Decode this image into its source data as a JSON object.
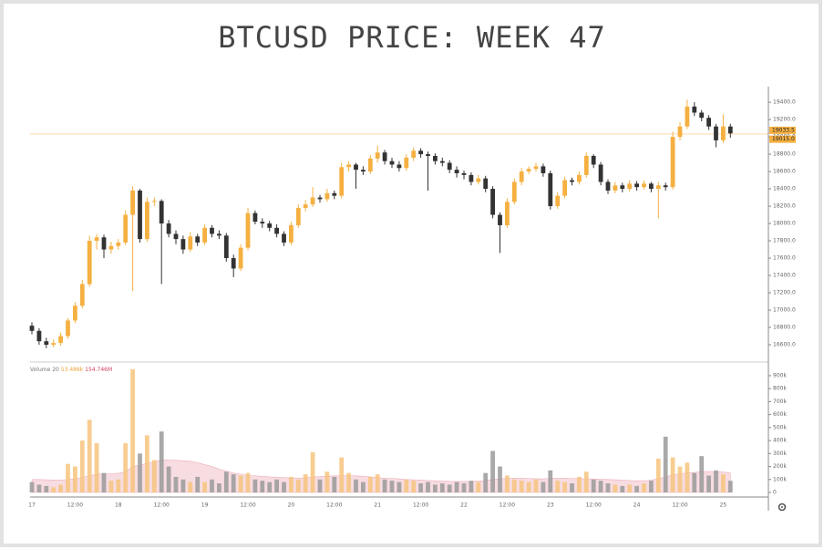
{
  "chart_data": {
    "type": "candlestick",
    "title": "BTCUSD PRICE: WEEK 47",
    "categories": [
      "17",
      null,
      null,
      null,
      null,
      null,
      "12:00",
      null,
      null,
      null,
      null,
      null,
      "18",
      null,
      null,
      null,
      null,
      null,
      "12:00",
      null,
      null,
      null,
      null,
      null,
      "19",
      null,
      null,
      null,
      null,
      null,
      "12:00",
      null,
      null,
      null,
      null,
      null,
      "20",
      null,
      null,
      null,
      null,
      null,
      "12:00",
      null,
      null,
      null,
      null,
      null,
      "21",
      null,
      null,
      null,
      null,
      null,
      "12:00",
      null,
      null,
      null,
      null,
      null,
      "22",
      null,
      null,
      null,
      null,
      null,
      "12:00",
      null,
      null,
      null,
      null,
      null,
      "23",
      null,
      null,
      null,
      null,
      null,
      "12:00",
      null,
      null,
      null,
      null,
      null,
      "24",
      null,
      null,
      null,
      null,
      null,
      "12:00",
      null,
      null,
      null,
      null,
      null,
      "25",
      null
    ],
    "open": [
      16820,
      16760,
      16640,
      16600,
      16620,
      16700,
      16880,
      17050,
      17300,
      17800,
      17840,
      17700,
      17740,
      17780,
      18100,
      18380,
      17820,
      18250,
      18260,
      18000,
      17880,
      17820,
      17700,
      17850,
      17780,
      17950,
      17880,
      17860,
      17600,
      17480,
      17720,
      18120,
      18020,
      18000,
      17950,
      17880,
      17780,
      17980,
      18180,
      18220,
      18300,
      18280,
      18350,
      18320,
      18650,
      18680,
      18620,
      18600,
      18750,
      18820,
      18720,
      18680,
      18640,
      18760,
      18840,
      18800,
      18780,
      18720,
      18700,
      18620,
      18580,
      18560,
      18480,
      18520,
      18400,
      18100,
      17980,
      18250,
      18480,
      18600,
      18630,
      18660,
      18580,
      18200,
      18320,
      18500,
      18480,
      18560,
      18780,
      18680,
      18480,
      18380,
      18440,
      18400,
      18460,
      18420,
      18460,
      18400,
      18440,
      18420,
      19000,
      19120,
      19350,
      19280,
      19220,
      19120,
      18960,
      19120
    ],
    "high": [
      16860,
      16790,
      16680,
      16660,
      16740,
      16910,
      17090,
      17350,
      17860,
      17880,
      17870,
      17790,
      17820,
      18150,
      18430,
      18400,
      18300,
      18300,
      18280,
      18040,
      17920,
      17860,
      17900,
      17880,
      17990,
      17980,
      17920,
      17890,
      17640,
      17760,
      18180,
      18150,
      18060,
      18030,
      17990,
      17910,
      18020,
      18220,
      18270,
      18420,
      18330,
      18400,
      18380,
      18700,
      18720,
      18700,
      18660,
      18790,
      18900,
      18850,
      18760,
      18720,
      18800,
      18880,
      18870,
      18830,
      18810,
      18760,
      18730,
      18660,
      18610,
      18590,
      18560,
      18550,
      18430,
      18130,
      18290,
      18520,
      18640,
      18660,
      18700,
      18690,
      18610,
      18360,
      18540,
      18530,
      18600,
      18820,
      18800,
      18710,
      18510,
      18480,
      18470,
      18500,
      18490,
      18500,
      18480,
      18480,
      18470,
      19060,
      19170,
      19430,
      19400,
      19310,
      19250,
      19150,
      19260,
      19150
    ],
    "low": [
      16720,
      16600,
      16560,
      16570,
      16590,
      16670,
      16850,
      17020,
      17270,
      17700,
      17600,
      17650,
      17700,
      17750,
      17220,
      17780,
      17790,
      18200,
      17300,
      17840,
      17760,
      17650,
      17670,
      17740,
      17750,
      17840,
      17820,
      17560,
      17380,
      17450,
      17690,
      17990,
      17950,
      17910,
      17840,
      17740,
      17750,
      17950,
      18140,
      18190,
      18240,
      18250,
      18280,
      18290,
      18600,
      18400,
      18560,
      18570,
      18700,
      18680,
      18640,
      18600,
      18610,
      18720,
      18760,
      18380,
      18680,
      18660,
      18580,
      18530,
      18510,
      18440,
      18450,
      18360,
      18060,
      17660,
      17950,
      18220,
      18440,
      18570,
      18600,
      18540,
      18160,
      18170,
      18290,
      18440,
      18450,
      18530,
      18640,
      18440,
      18340,
      18350,
      18360,
      18370,
      18380,
      18390,
      18360,
      18060,
      18380,
      18390,
      18960,
      19090,
      19240,
      19180,
      19080,
      18880,
      18930,
      18990
    ],
    "close": [
      16760,
      16640,
      16600,
      16620,
      16700,
      16880,
      17050,
      17300,
      17800,
      17840,
      17700,
      17740,
      17780,
      18100,
      18380,
      17820,
      18250,
      18260,
      18000,
      17880,
      17820,
      17700,
      17850,
      17780,
      17950,
      17880,
      17860,
      17600,
      17480,
      17720,
      18120,
      18020,
      18000,
      17950,
      17880,
      17780,
      17980,
      18180,
      18220,
      18300,
      18280,
      18350,
      18320,
      18650,
      18680,
      18620,
      18600,
      18750,
      18820,
      18720,
      18680,
      18640,
      18760,
      18840,
      18800,
      18780,
      18720,
      18700,
      18620,
      18580,
      18560,
      18480,
      18520,
      18400,
      18100,
      17980,
      18250,
      18480,
      18600,
      18630,
      18660,
      18580,
      18200,
      18320,
      18500,
      18480,
      18560,
      18780,
      18680,
      18480,
      18380,
      18440,
      18400,
      18460,
      18420,
      18460,
      18400,
      18440,
      18420,
      19000,
      19120,
      19350,
      19280,
      19220,
      19120,
      18960,
      19120,
      19040
    ],
    "volume": [
      80,
      60,
      50,
      40,
      60,
      220,
      200,
      400,
      560,
      380,
      150,
      90,
      100,
      380,
      950,
      300,
      440,
      250,
      470,
      200,
      120,
      100,
      80,
      120,
      80,
      100,
      70,
      160,
      140,
      130,
      150,
      100,
      90,
      80,
      100,
      80,
      120,
      100,
      140,
      310,
      100,
      160,
      120,
      270,
      150,
      100,
      80,
      120,
      140,
      100,
      90,
      80,
      100,
      90,
      70,
      80,
      60,
      70,
      60,
      80,
      70,
      90,
      80,
      150,
      320,
      200,
      130,
      100,
      90,
      80,
      100,
      80,
      170,
      90,
      80,
      70,
      120,
      160,
      100,
      90,
      70,
      60,
      50,
      60,
      50,
      70,
      90,
      260,
      430,
      270,
      200,
      230,
      150,
      280,
      130,
      170,
      140,
      90
    ],
    "volume_ma": [
      100,
      100,
      98,
      96,
      95,
      100,
      105,
      115,
      130,
      140,
      145,
      145,
      148,
      160,
      200,
      210,
      225,
      235,
      250,
      250,
      248,
      245,
      240,
      230,
      215,
      200,
      180,
      165,
      150,
      140,
      130,
      128,
      125,
      120,
      118,
      115,
      112,
      110,
      112,
      120,
      122,
      125,
      128,
      130,
      130,
      128,
      125,
      120,
      115,
      110,
      108,
      105,
      100,
      98,
      95,
      92,
      90,
      88,
      86,
      85,
      85,
      86,
      88,
      92,
      100,
      105,
      108,
      110,
      110,
      108,
      106,
      105,
      108,
      110,
      110,
      108,
      106,
      105,
      104,
      102,
      100,
      98,
      95,
      92,
      90,
      90,
      95,
      105,
      120,
      135,
      145,
      150,
      155,
      160,
      162,
      160,
      158,
      150
    ],
    "volume_legend": [
      "Volume 20",
      "53.486k",
      "154.746M"
    ],
    "up_color": "#f5b041",
    "down_color": "#333333",
    "volume_up_color": "#f7c47e",
    "volume_down_color": "#9a9a9a",
    "volume_ma_color": "#e58a9a",
    "price_line": 19033.5,
    "price_markers": [
      19033.5,
      {
        "value": 19015,
        "label": "19015.0"
      }
    ],
    "ylim": [
      16400,
      19580
    ],
    "yticks": [
      {
        "value": 16600,
        "label": "16600.0"
      },
      {
        "value": 16800,
        "label": "16800.0"
      },
      {
        "value": 17000,
        "label": "17000.0"
      },
      {
        "value": 17200,
        "label": "17200.0"
      },
      {
        "value": 17400,
        "label": "17400.0"
      },
      {
        "value": 17600,
        "label": "17600.0"
      },
      {
        "value": 17800,
        "label": "17800.0"
      },
      {
        "value": 18000,
        "label": "18000.0"
      },
      {
        "value": 18200,
        "label": "18200.0"
      },
      {
        "value": 18400,
        "label": "18400.0"
      },
      {
        "value": 18600,
        "label": "18600.0"
      },
      {
        "value": 18800,
        "label": "18800.0"
      },
      {
        "value": 19000,
        "label": "19000.0"
      },
      {
        "value": 19200,
        "label": "19200.0"
      },
      {
        "value": 19400,
        "label": "19400.0"
      }
    ],
    "y2lim": [
      0,
      1005
    ],
    "y2ticks": [
      0,
      {
        "value": 100,
        "label": "100k"
      },
      {
        "value": 200,
        "label": "200k"
      },
      {
        "value": 300,
        "label": "300k"
      },
      {
        "value": 400,
        "label": "400k"
      },
      {
        "value": 500,
        "label": "500k"
      },
      {
        "value": 600,
        "label": "600k"
      },
      {
        "value": 700,
        "label": "700k"
      },
      {
        "value": 800,
        "label": "800k"
      },
      {
        "value": 900,
        "label": "900k"
      }
    ]
  }
}
